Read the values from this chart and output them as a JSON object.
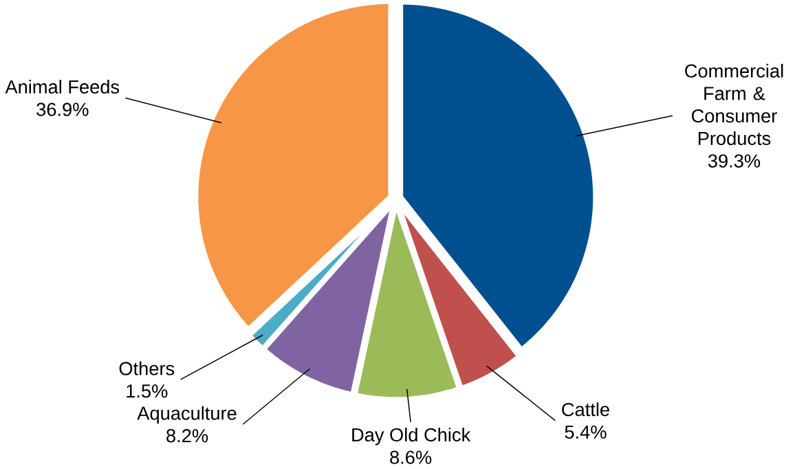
{
  "chart_data": {
    "type": "pie",
    "categories": [
      "Commercial Farm & Consumer Products",
      "Cattle",
      "Day Old Chick",
      "Aquaculture",
      "Others",
      "Animal Feeds"
    ],
    "values": [
      39.3,
      5.4,
      8.6,
      8.2,
      1.5,
      36.9
    ],
    "value_labels": [
      "39.3%",
      "5.4%",
      "8.6%",
      "8.2%",
      "1.5%",
      "36.9%"
    ],
    "colors": [
      "#00508f",
      "#c0504d",
      "#9bbb59",
      "#8064a2",
      "#4bacc6",
      "#f79646"
    ]
  }
}
